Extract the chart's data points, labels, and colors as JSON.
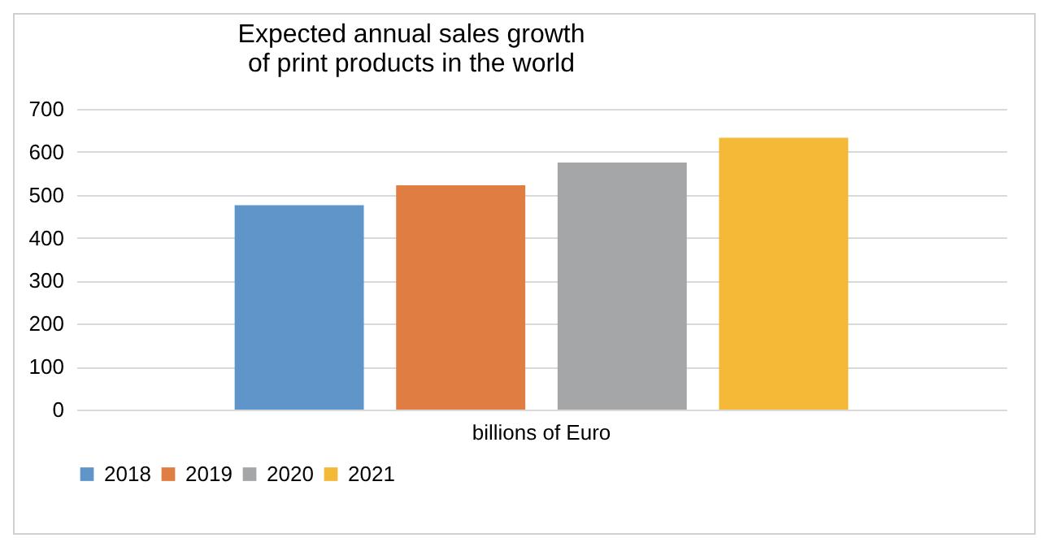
{
  "chart_data": {
    "type": "bar",
    "title": "Expected annual sales growth of print products in the world",
    "categories": [
      "billions of Euro"
    ],
    "series": [
      {
        "name": "2018",
        "color": "#5f95c8",
        "values": [
          476
        ]
      },
      {
        "name": "2019",
        "color": "#e07d42",
        "values": [
          522
        ]
      },
      {
        "name": "2020",
        "color": "#a5a6a8",
        "values": [
          575
        ]
      },
      {
        "name": "2021",
        "color": "#f3b937",
        "values": [
          633
        ]
      }
    ],
    "ylim": [
      0,
      700
    ],
    "yticks": [
      0,
      100,
      200,
      300,
      400,
      500,
      600,
      700
    ],
    "grid": "y",
    "legend": "bottom"
  }
}
